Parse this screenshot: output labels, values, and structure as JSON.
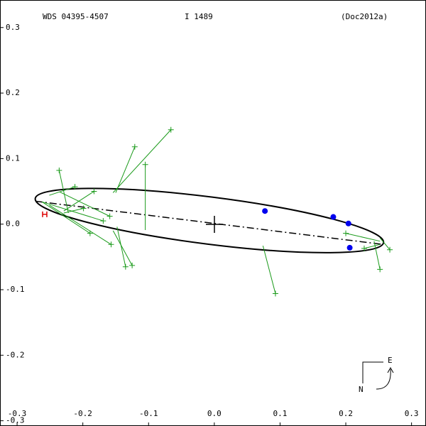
{
  "chart_data": {
    "type": "orbit",
    "title": "WDS 04395-4507",
    "subtitle": "I  1489",
    "reference": "(Doc2012a)",
    "compass_east": "E",
    "compass_north": "N",
    "xlim": [
      -0.326,
      0.322
    ],
    "ylim": [
      -0.308,
      0.342
    ],
    "xticks": [
      -0.3,
      -0.2,
      -0.1,
      {
        "value": 0,
        "label": "0.0"
      },
      0.1,
      0.2,
      0.3
    ],
    "yticks": [
      0.3,
      0.2,
      0.1,
      {
        "value": 0,
        "label": "0.0"
      },
      -0.1,
      -0.2,
      -0.3
    ],
    "orbit": {
      "center_x": -0.0075,
      "center_y": 0.0055,
      "semi_major": 0.267,
      "semi_minor": 0.036,
      "angle": -7.2,
      "color": "#000000"
    },
    "nodes_x": [
      -0.272,
      0.257
    ],
    "nodes_y": [
      0.035,
      -0.031
    ],
    "series": [
      {
        "color": "#1a9a1a",
        "x": [
          -0.066,
          -0.121,
          -0.105,
          -0.236,
          -0.212,
          -0.183,
          -0.199,
          -0.169,
          -0.159,
          -0.189,
          -0.157,
          -0.135,
          -0.125,
          0.093,
          0.2,
          0.267,
          0.252,
          0.228
        ],
        "y": [
          0.144,
          0.118,
          0.091,
          0.082,
          0.057,
          0.05,
          0.024,
          0.005,
          0.012,
          -0.014,
          -0.031,
          -0.065,
          -0.063,
          -0.106,
          -0.014,
          -0.039,
          -0.069,
          -0.037
        ],
        "fit_x": [
          -0.154,
          -0.15,
          -0.105,
          -0.222,
          -0.251,
          -0.229,
          -0.229,
          -0.262,
          -0.235,
          -0.262,
          -0.251,
          -0.148,
          -0.154,
          0.074,
          0.252,
          0.252,
          0.243,
          0.252
        ],
        "fit_y": [
          0.048,
          0.048,
          -0.009,
          0.017,
          0.044,
          0.02,
          0.017,
          0.034,
          0.049,
          0.034,
          0.029,
          -0.004,
          -0.01,
          -0.033,
          -0.026,
          -0.021,
          -0.026,
          -0.031
        ]
      },
      {
        "color": "#0000ee",
        "x": [
          0.077,
          0.181,
          0.204,
          0.206
        ],
        "y": [
          0.02,
          0.011,
          0.001,
          -0.036
        ]
      },
      {
        "color": "#dd0000",
        "x": [
          -0.258
        ],
        "y": [
          0.015
        ]
      }
    ]
  }
}
